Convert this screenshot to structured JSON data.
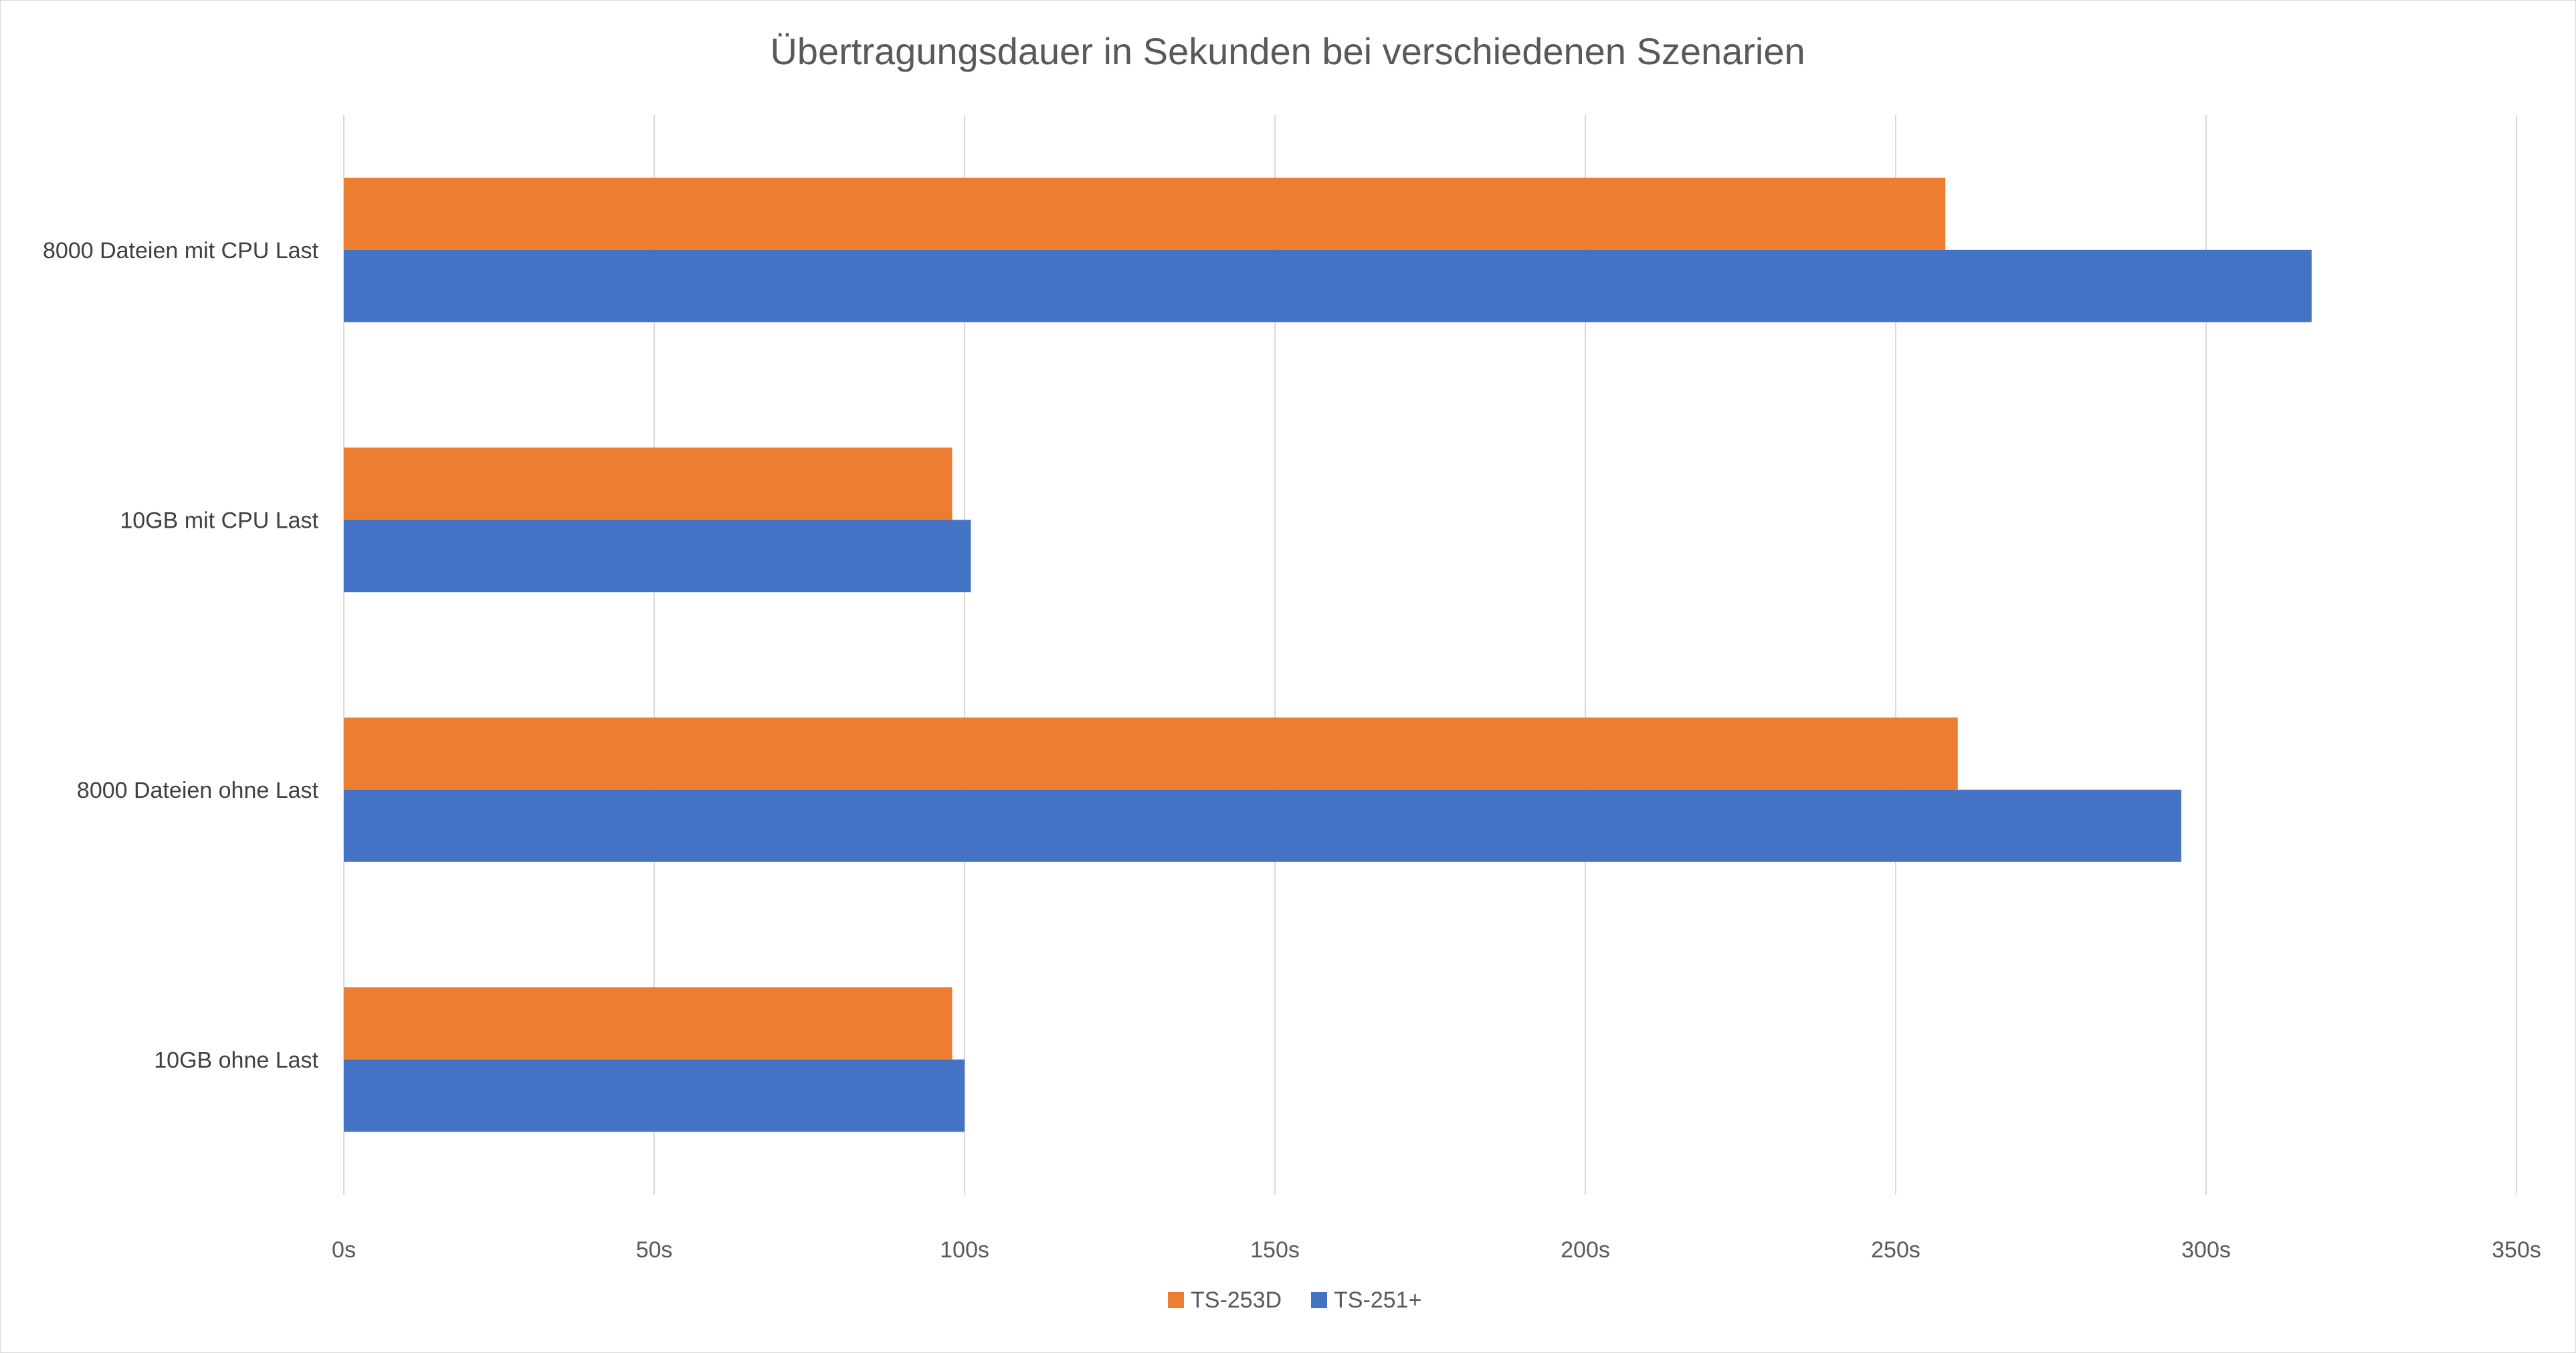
{
  "chart_data": {
    "type": "bar",
    "orientation": "horizontal",
    "title": "Übertragungsdauer in Sekunden bei verschiedenen Szenarien",
    "categories": [
      "8000 Dateien mit CPU Last",
      "10GB mit CPU Last",
      "8000 Dateien ohne Last",
      "10GB ohne Last"
    ],
    "series": [
      {
        "name": "TS-253D",
        "color": "#ED7D31",
        "values": [
          258,
          98,
          260,
          98
        ]
      },
      {
        "name": "TS-251+",
        "color": "#4472C4",
        "values": [
          317,
          101,
          296,
          100
        ]
      }
    ],
    "xlim": [
      0,
      350
    ],
    "xticks": [
      0,
      50,
      100,
      150,
      200,
      250,
      300,
      350
    ],
    "tick_labels": [
      "0s",
      "50s",
      "100s",
      "150s",
      "200s",
      "250s",
      "300s",
      "350s"
    ],
    "grid": true,
    "legend_position": "bottom"
  }
}
